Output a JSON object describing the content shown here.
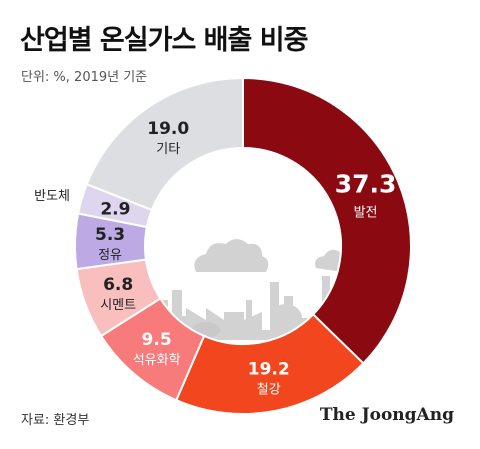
{
  "title": "산업별 온실가스 배출 비중",
  "subtitle": "단위: %, 2019년 기준",
  "source": "자료: 환경부",
  "brand": "The JoongAng",
  "chart_data": {
    "type": "pie",
    "style": "donut",
    "slices": [
      {
        "label": "발전",
        "value": 37.3,
        "display": "37.3",
        "color": "#8b0a12",
        "text_color": "#ffffff"
      },
      {
        "label": "철강",
        "value": 19.2,
        "display": "19.2",
        "color": "#f2461f",
        "text_color": "#ffffff"
      },
      {
        "label": "석유화학",
        "value": 9.5,
        "display": "9.5",
        "color": "#f77b7a",
        "text_color": "#ffffff"
      },
      {
        "label": "시멘트",
        "value": 6.8,
        "display": "6.8",
        "color": "#f8bfbe",
        "text_color": "#222222"
      },
      {
        "label": "정유",
        "value": 5.3,
        "display": "5.3",
        "color": "#bda9e3",
        "text_color": "#222222"
      },
      {
        "label": "반도체",
        "value": 2.9,
        "display": "2.9",
        "color": "#ddd6ee",
        "text_color": "#222222",
        "label_outside": true
      },
      {
        "label": "기타",
        "value": 19.0,
        "display": "19.0",
        "color": "#dcdee2",
        "text_color": "#222222"
      }
    ]
  }
}
